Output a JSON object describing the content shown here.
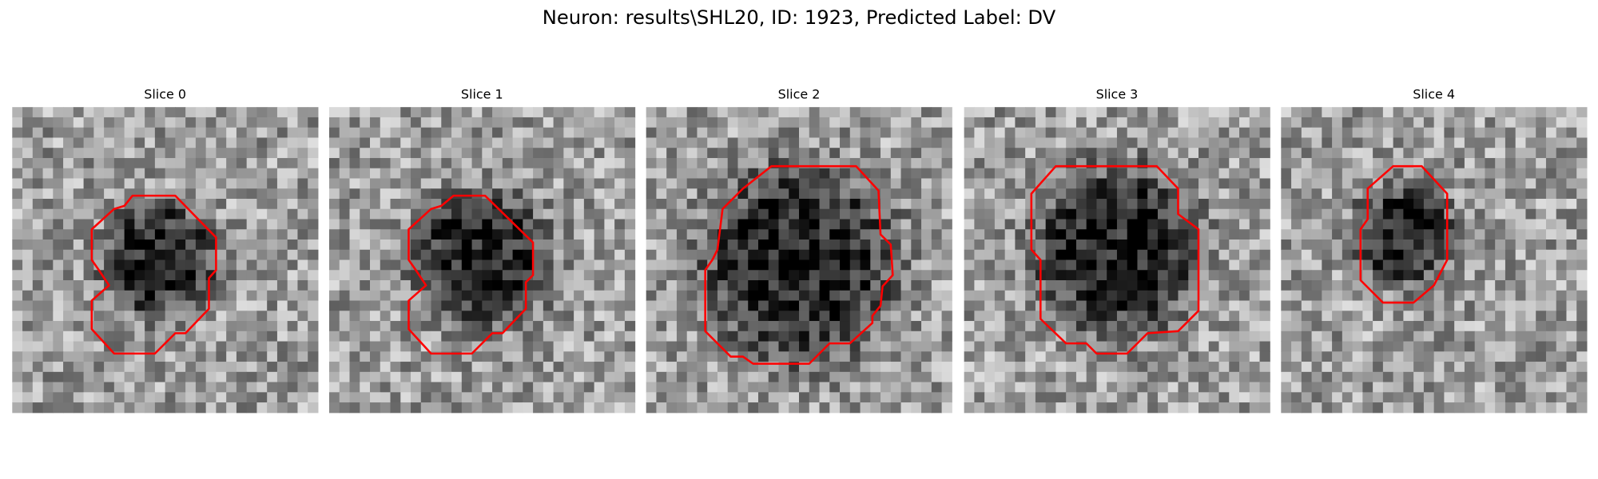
{
  "title": "Neuron: results\\SHL20, ID: 1923, Predicted Label: DV",
  "panels": [
    {
      "title": "Slice 0"
    },
    {
      "title": "Slice 1"
    },
    {
      "title": "Slice 2"
    },
    {
      "title": "Slice 3"
    },
    {
      "title": "Slice 4"
    }
  ]
}
